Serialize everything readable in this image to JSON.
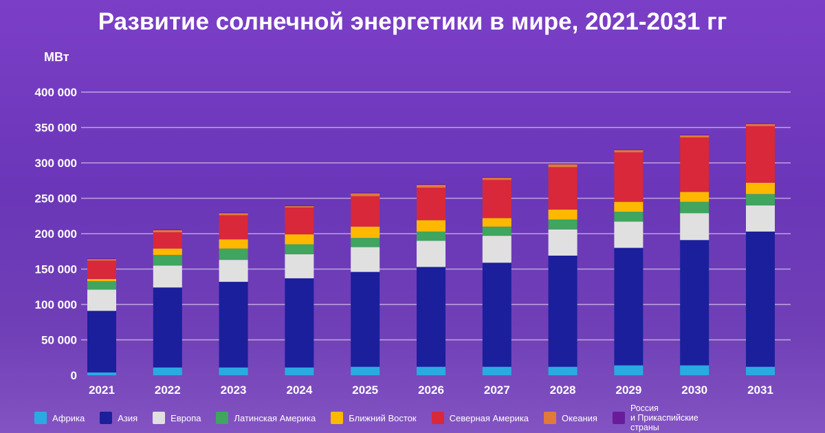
{
  "title": "Развитие солнечной энергетики в мире, 2021-2031 гг",
  "chart_data": {
    "type": "bar",
    "stacked": true,
    "title": "Развитие солнечной энергетики в мире, 2021-2031 гг",
    "ylabel": "МВт",
    "xlabel": "",
    "ylim": [
      0,
      400000
    ],
    "yticks": [
      "0",
      "50 000",
      "100 000",
      "150 000",
      "200 000",
      "250 000",
      "300 000",
      "350 000",
      "400 000"
    ],
    "grid": true,
    "legend_position": "bottom",
    "categories": [
      "2021",
      "2022",
      "2023",
      "2024",
      "2025",
      "2026",
      "2027",
      "2028",
      "2029",
      "2030",
      "2031"
    ],
    "series": [
      {
        "name": "Африка",
        "color": "#29abe2",
        "values": [
          4000,
          11000,
          11000,
          11000,
          12000,
          12000,
          12000,
          12000,
          14000,
          14000,
          12000
        ]
      },
      {
        "name": "Азия",
        "color": "#1b1f9c",
        "values": [
          87000,
          113000,
          121000,
          126000,
          134000,
          141000,
          147000,
          157000,
          166000,
          177000,
          191000
        ]
      },
      {
        "name": "Европа",
        "color": "#e0e0e0",
        "values": [
          30000,
          31000,
          31000,
          34000,
          35000,
          37000,
          38000,
          37000,
          37000,
          38000,
          37000
        ]
      },
      {
        "name": "Латинская Америка",
        "color": "#3fa55f",
        "values": [
          12000,
          15000,
          16000,
          14000,
          13000,
          13000,
          13000,
          14000,
          14000,
          16000,
          16000
        ]
      },
      {
        "name": "Ближний Восток",
        "color": "#ffb800",
        "values": [
          3000,
          9000,
          13000,
          14000,
          16000,
          16000,
          12000,
          14000,
          14000,
          14000,
          16000
        ]
      },
      {
        "name": "Северная Америка",
        "color": "#d8283a",
        "values": [
          26000,
          23000,
          34000,
          38000,
          43000,
          46000,
          54000,
          60000,
          70000,
          77000,
          80000
        ]
      },
      {
        "name": "Океания",
        "color": "#e07a3a",
        "values": [
          2000,
          3000,
          3000,
          2000,
          4000,
          4000,
          3000,
          4000,
          3000,
          3000,
          3000
        ]
      },
      {
        "name": "Россия\nи Прикаспийские\nстраны",
        "color": "#6a1b9a",
        "values": [
          1000,
          1000,
          1000,
          1000,
          1000,
          1000,
          1000,
          1000,
          1000,
          1000,
          1000
        ]
      }
    ]
  }
}
